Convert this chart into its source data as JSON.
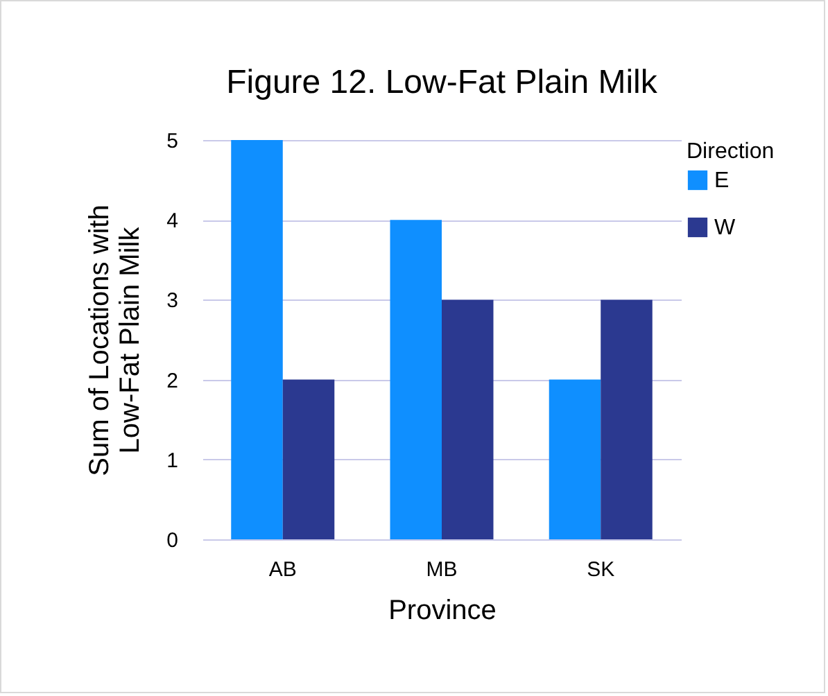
{
  "chart_data": {
    "type": "bar",
    "title": "Figure 12. Low-Fat Plain Milk",
    "xlabel": "Province",
    "ylabel": "Sum of Locations with Low-Fat Plain Milk",
    "legend_title": "Direction",
    "categories": [
      "AB",
      "MB",
      "SK"
    ],
    "series": [
      {
        "name": "E",
        "color": "#0f8fff",
        "values": [
          5,
          4,
          2
        ]
      },
      {
        "name": "W",
        "color": "#2b3990",
        "values": [
          2,
          3,
          3
        ]
      }
    ],
    "ylim": [
      0,
      5
    ],
    "yticks": [
      0,
      1,
      2,
      3,
      4,
      5
    ],
    "grid": "y",
    "legend": "right"
  }
}
